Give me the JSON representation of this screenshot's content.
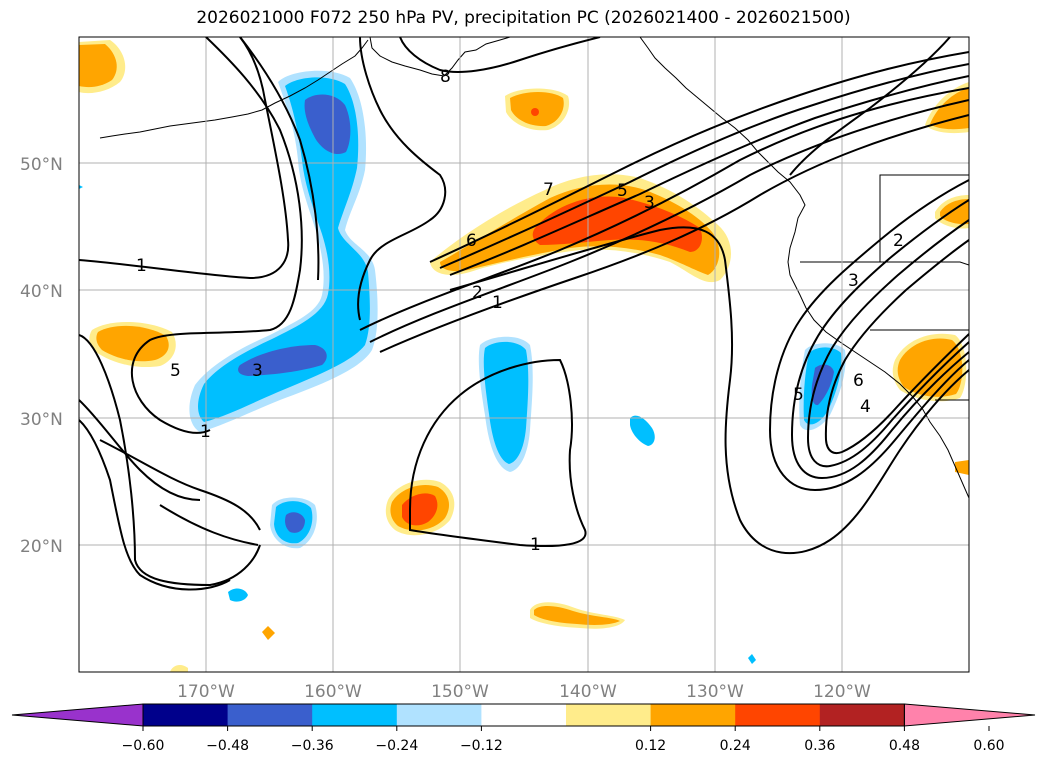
{
  "title": "2026021000 F072 250 hPa PV, precipitation PC (2026021400 - 2026021500)",
  "lat_labels": [
    "50°N",
    "40°N",
    "30°N",
    "20°N"
  ],
  "lon_labels": [
    "170°W",
    "160°W",
    "150°W",
    "140°W",
    "130°W",
    "120°W"
  ],
  "contour_labels": [
    "8",
    "7",
    "5",
    "3",
    "6",
    "2",
    "1",
    "1",
    "5",
    "3",
    "1",
    "2",
    "3",
    "5",
    "6",
    "4",
    "1"
  ],
  "colorbar": {
    "ticks": [
      "−0.60",
      "−0.48",
      "−0.36",
      "−0.24",
      "−0.12",
      "0.12",
      "0.24",
      "0.36",
      "0.48",
      "0.60"
    ],
    "colors": [
      "#9932CC",
      "#00008B",
      "#3A5FCD",
      "#00BFFF",
      "#B0E2FF",
      "#FFFFFF",
      "#FFEC8B",
      "#FFA500",
      "#FF4500",
      "#B22222",
      "#FF82AB"
    ]
  }
}
